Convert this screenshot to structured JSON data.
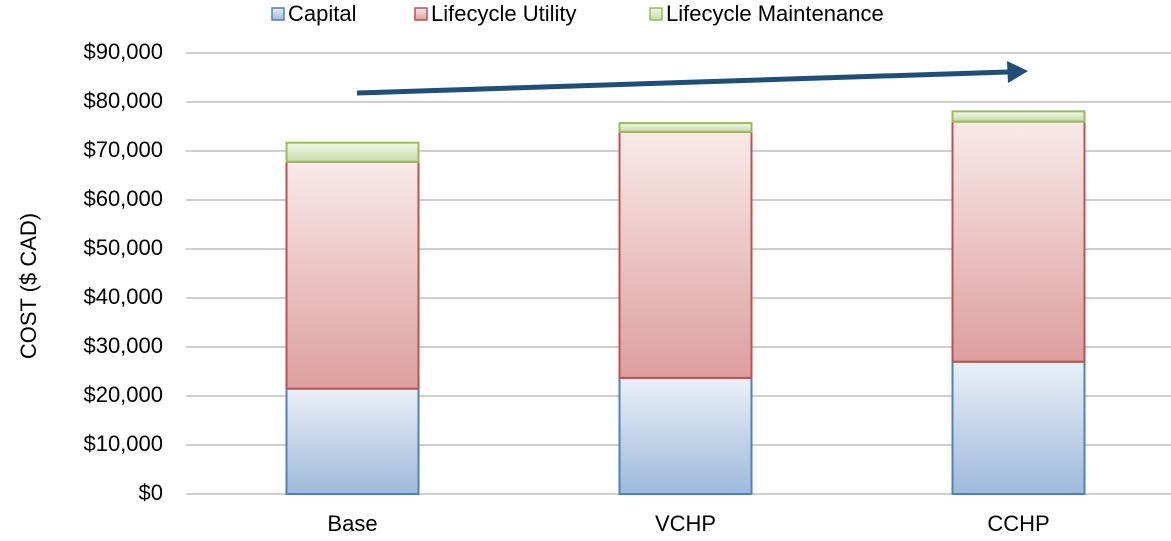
{
  "chart_data": {
    "type": "stacked_bar",
    "y_label": "COST ($ CAD)",
    "categories": [
      "Base",
      "VCHP",
      "CCHP"
    ],
    "series": [
      {
        "name": "Capital",
        "color": "#4f81bd",
        "values": [
          21500,
          23700,
          27000
        ]
      },
      {
        "name": "Lifecycle Utility",
        "color": "#c0504d",
        "values": [
          46300,
          50200,
          49000
        ]
      },
      {
        "name": "Lifecycle Maintenance",
        "color": "#9bbb59",
        "values": [
          3900,
          1800,
          2100
        ]
      }
    ],
    "ylim": [
      0,
      90000
    ],
    "yticks": [
      {
        "value": 0,
        "label": "$0"
      },
      {
        "value": 10000,
        "label": "$10,000"
      },
      {
        "value": 20000,
        "label": "$20,000"
      },
      {
        "value": 30000,
        "label": "$30,000"
      },
      {
        "value": 40000,
        "label": "$40,000"
      },
      {
        "value": 50000,
        "label": "$50,000"
      },
      {
        "value": 60000,
        "label": "$60,000"
      },
      {
        "value": 70000,
        "label": "$70,000"
      },
      {
        "value": 80000,
        "label": "$80,000"
      },
      {
        "value": 90000,
        "label": "$90,000"
      }
    ],
    "grid": true,
    "legend": "top"
  }
}
